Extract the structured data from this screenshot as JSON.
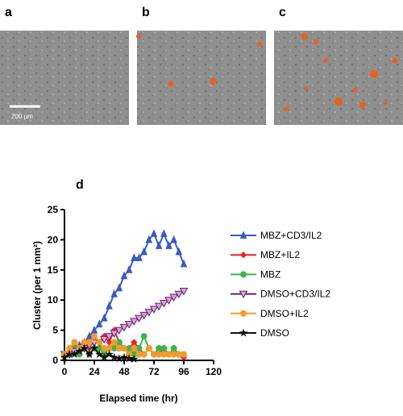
{
  "panels": [
    {
      "label": "a"
    },
    {
      "label": "b"
    },
    {
      "label": "c"
    }
  ],
  "scale_bar": "200 µm",
  "chart_data": {
    "type": "line",
    "panel_label": "d",
    "xlabel": "Elapsed time (hr)",
    "ylabel": "Cluster (per 1 mm²)",
    "x": [
      0,
      4,
      8,
      12,
      16,
      20,
      24,
      28,
      32,
      36,
      40,
      44,
      48,
      52,
      56,
      60,
      64,
      68,
      72,
      76,
      80,
      84,
      88,
      92,
      96
    ],
    "xlim": [
      0,
      120
    ],
    "xticks": [
      0,
      24,
      48,
      72,
      96,
      120
    ],
    "ylim": [
      0,
      25
    ],
    "yticks": [
      0,
      5,
      10,
      15,
      20,
      25
    ],
    "legend": "right",
    "series": [
      {
        "name": "MBZ+CD3/IL2",
        "color": "#3a5bbf",
        "marker": "triangle",
        "values": [
          1,
          1.5,
          2,
          2.5,
          3,
          4,
          5,
          6,
          7,
          9,
          11,
          12,
          14,
          15,
          17,
          17,
          18,
          20,
          21,
          19,
          21,
          19,
          20,
          18,
          16
        ]
      },
      {
        "name": "MBZ+IL2",
        "color": "#e8262a",
        "marker": "diamond",
        "values": [
          1,
          2,
          3,
          2,
          3,
          2,
          4,
          3,
          4,
          3,
          5,
          3,
          2,
          2,
          3,
          2,
          1,
          2,
          1,
          1,
          2,
          1,
          1,
          1,
          0.5
        ]
      },
      {
        "name": "MBZ",
        "color": "#3cb54a",
        "marker": "circle",
        "values": [
          1,
          1,
          2,
          1,
          2,
          1,
          2,
          2,
          1,
          2,
          2,
          3,
          2,
          2,
          1,
          2,
          4,
          2,
          1,
          2,
          2,
          1,
          2,
          1,
          1
        ]
      },
      {
        "name": "DMSO+CD3/IL2",
        "color": "#5a2a5c",
        "fill": "#e59be6",
        "marker": "down-triangle",
        "values": [
          1,
          1,
          1.5,
          2,
          2,
          2.5,
          3,
          3,
          3.5,
          4,
          4.5,
          5,
          5.5,
          6,
          6.5,
          7,
          7.5,
          8,
          8.5,
          9,
          9.5,
          10,
          10.5,
          11,
          11.5
        ]
      },
      {
        "name": "DMSO+IL2",
        "color": "#f39a2b",
        "marker": "circle",
        "values": [
          1,
          2,
          3,
          2,
          3,
          3,
          4,
          3,
          2,
          2,
          3,
          2,
          2,
          1,
          2,
          1,
          1,
          2,
          1,
          1,
          1,
          1,
          1,
          1,
          1
        ]
      },
      {
        "name": "DMSO",
        "color": "#111111",
        "marker": "star",
        "values": [
          0.5,
          1,
          1,
          1.5,
          2,
          1,
          2,
          1,
          0.5,
          1,
          0.5,
          0.3,
          0.5,
          0.3,
          0.2,
          null,
          null,
          null,
          null,
          null,
          null,
          null,
          null,
          null,
          null
        ]
      }
    ]
  }
}
